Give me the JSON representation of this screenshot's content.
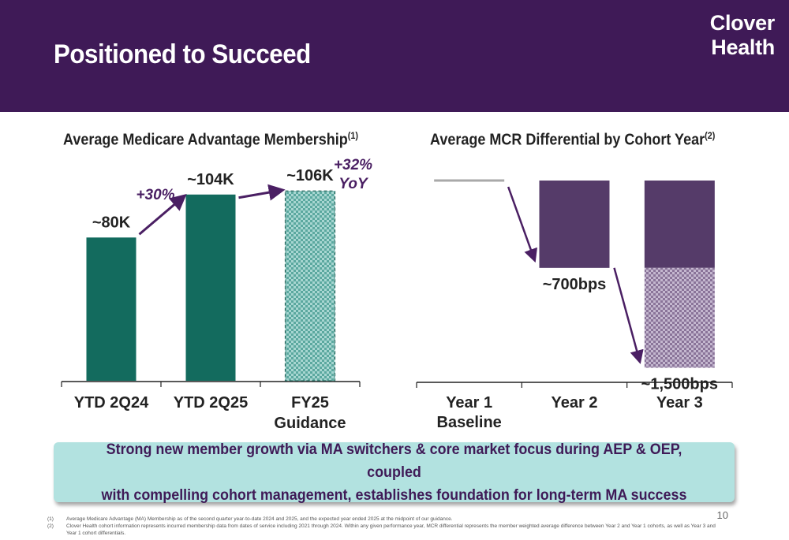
{
  "header": {
    "title": "Positioned to Succeed",
    "logo_line1": "Clover",
    "logo_line2": "Health",
    "background_color": "#3f1a57"
  },
  "chart_data": [
    {
      "type": "bar",
      "title": "Average Medicare Advantage Membership",
      "title_footnote": "(1)",
      "categories": [
        "YTD 2Q24",
        "YTD 2Q25",
        "FY25 Guidance"
      ],
      "category_lines": [
        [
          "YTD 2Q24"
        ],
        [
          "YTD 2Q25"
        ],
        [
          "FY25",
          "Guidance"
        ]
      ],
      "values": [
        80,
        104,
        106
      ],
      "unit": "K members",
      "data_labels": [
        "~80K",
        "~104K",
        "~106K"
      ],
      "growth_annotations": [
        {
          "from": "YTD 2Q24",
          "to": "YTD 2Q25",
          "line1": "+30%",
          "line2": ""
        },
        {
          "from": "YTD 2Q25",
          "to": "FY25 Guidance",
          "line1": "+32%",
          "line2": "YoY"
        }
      ],
      "bar_color": "#136b5e",
      "guidance_color": "#8fc8c2",
      "arrow_color": "#4a1f63",
      "guidance_pattern": true,
      "ylim": [
        0,
        140
      ],
      "grid": false,
      "legend": "none"
    },
    {
      "type": "bar",
      "title": "Average MCR Differential by Cohort Year",
      "title_footnote": "(2)",
      "categories": [
        "Year 1 Baseline",
        "Year 2",
        "Year 3"
      ],
      "category_lines": [
        [
          "Year 1",
          "Baseline"
        ],
        [
          "Year 2"
        ],
        [
          "Year 3"
        ]
      ],
      "unit": "bps",
      "baseline": 0,
      "series": [
        {
          "values": [
            0,
            -700,
            -700
          ],
          "color": "#553b69"
        },
        {
          "values": [
            0,
            0,
            -800
          ],
          "color": "#a592b4",
          "pattern": true
        }
      ],
      "totals": [
        0,
        -700,
        -1500
      ],
      "data_labels": [
        "",
        "~700bps",
        "~1,500bps"
      ],
      "ylim": [
        -1800,
        0
      ],
      "grid": false,
      "legend": "none"
    }
  ],
  "callout": {
    "line1": "Strong new member growth via MA switchers & core market focus during AEP & OEP, coupled",
    "line2": "with compelling cohort management, establishes foundation for long-term MA success"
  },
  "page_number": "10",
  "footnotes": [
    {
      "num": "(1)",
      "text": "Average Medicare Advantage (MA) Membership as of the second quarter year-to-date 2024 and 2025,  and the expected year ended 2025 at the midpoint of our guidance."
    },
    {
      "num": "(2)",
      "text": "Clover Health cohort information represents incurred membership data from dates of service including 2021 through 2024. Within any given performance year, MCR differential represents the member weighted average difference between Year 2 and Year 1 cohorts, as well as Year 3 and Year 1 cohort differentials."
    }
  ]
}
